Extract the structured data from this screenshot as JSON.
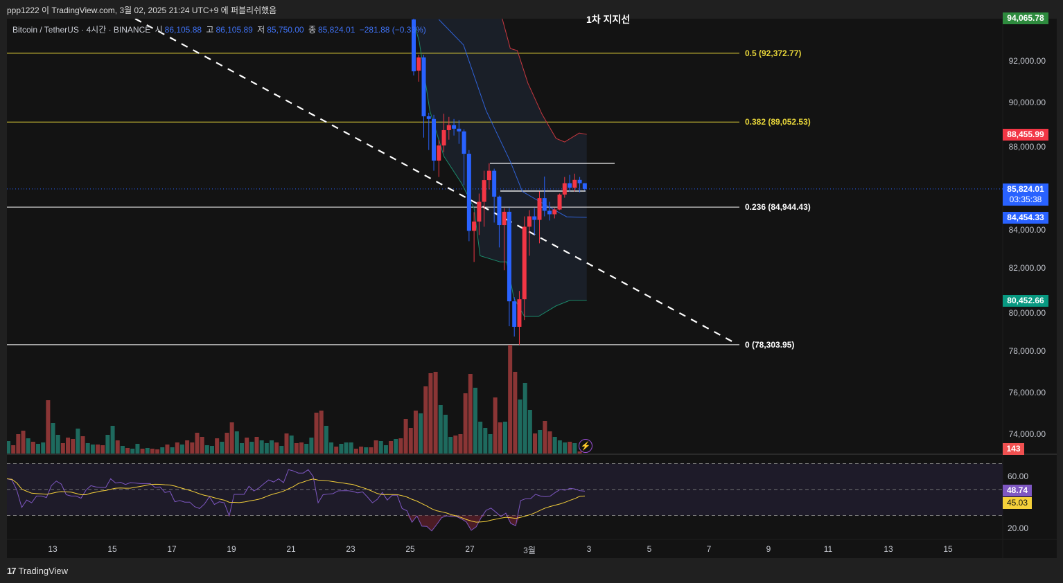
{
  "header": {
    "publish_text": "ppp1222 이 TradingView.com, 3월 02, 2025 21:24 UTC+9 에 퍼블리쉬했음"
  },
  "legend": {
    "symbol": "Bitcoin / TetherUS · 4시간 · BINANCE",
    "open_label": "시",
    "open": "86,105.88",
    "high_label": "고",
    "high": "86,105.89",
    "low_label": "저",
    "low": "85,750.00",
    "close_label": "종",
    "close": "85,824.01",
    "change": "−281.88 (−0.33%)"
  },
  "annotation": "1차 지지선",
  "brand": "TradingView",
  "colors": {
    "up": "#f23645",
    "down": "#2962ff",
    "vol_up": "#8a3535",
    "vol_down": "#1e6a5e",
    "fib_yellow": "#e8d63a",
    "rsi": "#7e57c2",
    "rsi_ma": "#f5d03a"
  },
  "price_axis": {
    "labels": [
      "92,000.00",
      "90,000.00",
      "88,000.00",
      "84,000.00",
      "82,000.00",
      "80,000.00",
      "78,000.00",
      "76,000.00",
      "74,000.00"
    ],
    "tags": [
      {
        "name": "high-price-tag",
        "text": "94,065.78",
        "color": "#2e8b3e",
        "price": 94065.78
      },
      {
        "name": "upper-band-tag",
        "text": "88,455.99",
        "color": "#f23645",
        "price": 88455.99
      },
      {
        "name": "last-price-tag",
        "text": "85,824.01",
        "sub": "03:35:38",
        "color": "#2962ff",
        "price": 85824.01
      },
      {
        "name": "middle-band-tag",
        "text": "84,454.33",
        "color": "#2962ff",
        "price": 84454.33
      },
      {
        "name": "lower-band-tag",
        "text": "80,452.66",
        "color": "#089981",
        "price": 80452.66
      }
    ],
    "volume_tag": {
      "text": "143",
      "color": "#f05050"
    }
  },
  "rsi_axis": {
    "labels": [
      "60.00",
      "20.00"
    ],
    "rsi_tag": "48.74",
    "ma_tag": "45.03"
  },
  "time_axis": [
    "13",
    "15",
    "17",
    "19",
    "21",
    "23",
    "25",
    "27",
    "3월",
    "3",
    "5",
    "7",
    "9",
    "11",
    "13",
    "15"
  ],
  "chart_data": {
    "type": "candlestick",
    "price_range": [
      72500,
      94500
    ],
    "fib_levels": [
      {
        "level": "0.5",
        "price": 92372.77,
        "label": "0.5 (92,372.77)",
        "color": "#e8d63a"
      },
      {
        "level": "0.382",
        "price": 89052.53,
        "label": "0.382 (89,052.53)",
        "color": "#e8d63a"
      },
      {
        "level": "0.236",
        "price": 84944.43,
        "label": "0.236 (84,944.43)",
        "color": "#ffffff"
      },
      {
        "level": "0",
        "price": 78303.95,
        "label": "0 (78,303.95)",
        "color": "#ffffff"
      }
    ],
    "horizontal_lines": [
      87060,
      85720
    ],
    "last_price": 85824.01,
    "candles": [
      [
        94000,
        94100,
        91300,
        91500
      ],
      [
        91530,
        92300,
        91000,
        92170
      ],
      [
        92170,
        92300,
        88300,
        89330
      ],
      [
        89330,
        89500,
        87700,
        89200
      ],
      [
        89200,
        89400,
        86700,
        87190
      ],
      [
        87190,
        88200,
        86400,
        87920
      ],
      [
        87920,
        89450,
        87600,
        88660
      ],
      [
        88660,
        89300,
        88200,
        88900
      ],
      [
        88900,
        89200,
        88400,
        88730
      ],
      [
        88730,
        89150,
        88000,
        88600
      ],
      [
        88600,
        88700,
        86000,
        87520
      ],
      [
        87520,
        87700,
        83300,
        83800
      ],
      [
        83800,
        84700,
        82300,
        84250
      ],
      [
        84250,
        85600,
        83600,
        85200
      ],
      [
        85200,
        86700,
        84000,
        86250
      ],
      [
        86250,
        87060,
        85800,
        86700
      ],
      [
        86700,
        86800,
        84200,
        85450
      ],
      [
        85450,
        85500,
        83000,
        84080
      ],
      [
        84080,
        84900,
        81900,
        84720
      ],
      [
        84720,
        84900,
        79200,
        80400
      ],
      [
        80400,
        80600,
        78700,
        79170
      ],
      [
        79170,
        80900,
        78300,
        80500
      ],
      [
        80500,
        84500,
        79500,
        84000
      ],
      [
        84000,
        84800,
        82600,
        84500
      ],
      [
        84500,
        84900,
        83600,
        84330
      ],
      [
        84330,
        85700,
        83200,
        85380
      ],
      [
        85380,
        86420,
        84500,
        84770
      ],
      [
        84770,
        85200,
        84300,
        84600
      ],
      [
        84600,
        84900,
        84400,
        84830
      ],
      [
        84830,
        85600,
        84800,
        85550
      ],
      [
        85550,
        86400,
        85400,
        86100
      ],
      [
        86100,
        86500,
        85700,
        85880
      ],
      [
        85880,
        86560,
        85700,
        86260
      ],
      [
        86260,
        86400,
        85650,
        86100
      ],
      [
        86100,
        86105.89,
        85750,
        85824.01
      ]
    ],
    "bollinger": {
      "upper": [
        [
          17.6,
          94040
        ],
        [
          19.2,
          92600
        ],
        [
          20.6,
          92500
        ],
        [
          22.7,
          90930
        ],
        [
          25.5,
          89430
        ],
        [
          28.3,
          88260
        ],
        [
          30,
          88090
        ],
        [
          32.9,
          88520
        ],
        [
          34.4,
          88456
        ]
      ],
      "middle": [
        [
          5,
          94000
        ],
        [
          9.9,
          92770
        ],
        [
          14.4,
          89600
        ],
        [
          19.2,
          87150
        ],
        [
          21.6,
          85700
        ],
        [
          24.8,
          85250
        ],
        [
          27.3,
          84900
        ],
        [
          30.4,
          84480
        ],
        [
          34.4,
          84454
        ]
      ],
      "lower": [
        [
          0,
          93900
        ],
        [
          1.1,
          92930
        ],
        [
          3.2,
          89600
        ],
        [
          6,
          87400
        ],
        [
          9.5,
          86100
        ],
        [
          12,
          84900
        ],
        [
          13.2,
          82600
        ],
        [
          17.2,
          82300
        ],
        [
          18.5,
          82300
        ],
        [
          19.9,
          80570
        ],
        [
          22,
          79670
        ],
        [
          24.8,
          79670
        ],
        [
          28.3,
          80180
        ],
        [
          31.1,
          80450
        ],
        [
          34.4,
          80453
        ]
      ]
    },
    "volume": [
      [
        18,
        0
      ],
      [
        12,
        1
      ],
      [
        28,
        1
      ],
      [
        33,
        1
      ],
      [
        22,
        0
      ],
      [
        17,
        1
      ],
      [
        14,
        0
      ],
      [
        16,
        0
      ],
      [
        77,
        1
      ],
      [
        44,
        0
      ],
      [
        27,
        0
      ],
      [
        15,
        1
      ],
      [
        23,
        1
      ],
      [
        21,
        1
      ],
      [
        36,
        0
      ],
      [
        25,
        1
      ],
      [
        15,
        0
      ],
      [
        13,
        0
      ],
      [
        13,
        1
      ],
      [
        12,
        1
      ],
      [
        27,
        0
      ],
      [
        40,
        0
      ],
      [
        19,
        1
      ],
      [
        11,
        0
      ],
      [
        8,
        1
      ],
      [
        7,
        0
      ],
      [
        14,
        0
      ],
      [
        7,
        1
      ],
      [
        8,
        0
      ],
      [
        7,
        1
      ],
      [
        6,
        1
      ],
      [
        9,
        0
      ],
      [
        13,
        1
      ],
      [
        9,
        0
      ],
      [
        16,
        1
      ],
      [
        13,
        0
      ],
      [
        19,
        1
      ],
      [
        16,
        1
      ],
      [
        30,
        1
      ],
      [
        24,
        1
      ],
      [
        12,
        0
      ],
      [
        11,
        0
      ],
      [
        22,
        1
      ],
      [
        17,
        0
      ],
      [
        30,
        1
      ],
      [
        45,
        1
      ],
      [
        32,
        0
      ],
      [
        15,
        0
      ],
      [
        23,
        1
      ],
      [
        17,
        0
      ],
      [
        24,
        1
      ],
      [
        19,
        0
      ],
      [
        15,
        0
      ],
      [
        19,
        0
      ],
      [
        16,
        1
      ],
      [
        11,
        0
      ],
      [
        29,
        1
      ],
      [
        26,
        0
      ],
      [
        15,
        1
      ],
      [
        16,
        1
      ],
      [
        14,
        0
      ],
      [
        23,
        0
      ],
      [
        59,
        1
      ],
      [
        62,
        1
      ],
      [
        40,
        0
      ],
      [
        16,
        0
      ],
      [
        10,
        1
      ],
      [
        14,
        0
      ],
      [
        16,
        0
      ],
      [
        16,
        0
      ],
      [
        7,
        1
      ],
      [
        10,
        1
      ],
      [
        9,
        0
      ],
      [
        9,
        1
      ],
      [
        19,
        1
      ],
      [
        18,
        0
      ],
      [
        12,
        0
      ],
      [
        18,
        1
      ],
      [
        21,
        0
      ],
      [
        22,
        1
      ],
      [
        50,
        1
      ],
      [
        37,
        1
      ],
      [
        62,
        1
      ],
      [
        58,
        0
      ],
      [
        97,
        1
      ],
      [
        116,
        1
      ],
      [
        118,
        1
      ],
      [
        70,
        0
      ],
      [
        56,
        0
      ],
      [
        24,
        0
      ],
      [
        26,
        1
      ],
      [
        28,
        1
      ],
      [
        87,
        1
      ],
      [
        115,
        1
      ],
      [
        95,
        0
      ],
      [
        46,
        0
      ],
      [
        37,
        0
      ],
      [
        28,
        0
      ],
      [
        81,
        1
      ],
      [
        45,
        1
      ],
      [
        46,
        0
      ],
      [
        157,
        1
      ],
      [
        118,
        1
      ],
      [
        78,
        0
      ],
      [
        102,
        0
      ],
      [
        63,
        0
      ],
      [
        29,
        1
      ],
      [
        34,
        0
      ],
      [
        47,
        1
      ],
      [
        32,
        1
      ],
      [
        24,
        0
      ],
      [
        19,
        0
      ],
      [
        16,
        0
      ],
      [
        17,
        1
      ],
      [
        15,
        0
      ],
      [
        3,
        1
      ]
    ],
    "rsi": [
      58.3,
      57.4,
      49.5,
      36.2,
      41.9,
      39.8,
      45,
      45,
      43.8,
      53,
      56.5,
      54.2,
      46,
      45,
      45,
      43.3,
      49.5,
      53,
      52,
      51.6,
      51.6,
      58.3,
      55,
      55.6,
      53.9,
      55.3,
      55,
      54.6,
      54.6,
      54.6,
      51.6,
      52,
      47.7,
      48.6,
      40.6,
      41.5,
      40.3,
      40.3,
      36.8,
      35.4,
      38.9,
      44.5,
      38.5,
      40.6,
      39.8,
      29.7,
      46.3,
      46.3,
      46.3,
      52.5,
      48.9,
      51.2,
      54.4,
      57.4,
      55.8,
      58.3,
      55.3,
      65.3,
      64.3,
      62.7,
      62.7,
      65.3,
      60,
      39.8,
      46,
      46.5,
      46.8,
      48.9,
      49.1,
      49.1,
      48.6,
      47.4,
      48.2,
      44.2,
      39.8,
      42.5,
      47.7,
      41.9,
      45.6,
      45.6,
      35.4,
      33.6,
      24.8,
      29.7,
      21.8,
      21.6,
      18.1,
      23,
      28.3,
      29.7,
      29.2,
      29.2,
      27.4,
      25.1,
      18.6,
      21.3,
      28.3,
      34,
      35.7,
      32.5,
      29.2,
      31.8,
      23.9,
      22.1,
      41.5,
      42.9,
      42.9,
      46.3,
      45,
      44.5,
      45,
      47.7,
      50,
      49.5,
      50.9,
      50.4,
      49.1,
      48.74
    ],
    "rsi_levels": [
      70,
      50,
      30
    ],
    "rsi_ma_period": 14
  }
}
